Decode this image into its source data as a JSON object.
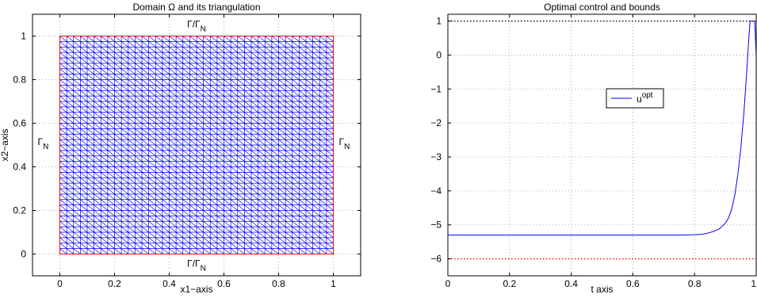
{
  "chart_data": [
    {
      "type": "mesh",
      "title": "Domain Ω and its triangulation",
      "xlabel": "x1−axis",
      "ylabel": "x2−axis",
      "xlim": [
        -0.1,
        1.1
      ],
      "ylim": [
        -0.1,
        1.1
      ],
      "xticks": [
        "0",
        "0.2",
        "0.4",
        "0.6",
        "0.8",
        "1"
      ],
      "yticks": [
        "0",
        "0.2",
        "0.4",
        "0.6",
        "0.8",
        "1"
      ],
      "xtick_values": [
        0,
        0.2,
        0.4,
        0.6,
        0.8,
        1
      ],
      "ytick_values": [
        0,
        0.2,
        0.4,
        0.6,
        0.8,
        1
      ],
      "grid": true,
      "domain": {
        "x": [
          0,
          1
        ],
        "y": [
          0,
          1
        ]
      },
      "mesh_divisions": 40,
      "mesh_color": "#0000ff",
      "boundary_color": "#ff0000",
      "boundary_labels": {
        "top": {
          "base": "Γ/Γ",
          "sub": "N"
        },
        "bottom": {
          "base": "Γ/Γ",
          "sub": "N"
        },
        "left": {
          "base": "Γ",
          "sub": "N"
        },
        "right": {
          "base": "Γ",
          "sub": "N"
        }
      }
    },
    {
      "type": "line",
      "title": "Optimal control and bounds",
      "xlabel": "t axis",
      "ylabel": "",
      "xlim": [
        0,
        1
      ],
      "ylim": [
        -6.5,
        1.2
      ],
      "xticks": [
        "0",
        "0.2",
        "0.4",
        "0.6",
        "0.8",
        "1"
      ],
      "yticks": [
        "1",
        "0",
        "−1",
        "−2",
        "−3",
        "−4",
        "−5",
        "−6"
      ],
      "xtick_values": [
        0,
        0.2,
        0.4,
        0.6,
        0.8,
        1
      ],
      "ytick_values": [
        1,
        0,
        -1,
        -2,
        -3,
        -4,
        -5,
        -6
      ],
      "grid": true,
      "legend": {
        "placement": "center",
        "entries": [
          {
            "base": "u",
            "sup": "opt",
            "color": "#0000ff"
          }
        ]
      },
      "bounds": [
        {
          "value": 1,
          "color": "#000000",
          "style": "dotted"
        },
        {
          "value": -6,
          "color": "#ff0000",
          "style": "dotted"
        }
      ],
      "series": [
        {
          "color": "#0000ff",
          "x": [
            0,
            0.1,
            0.2,
            0.3,
            0.4,
            0.5,
            0.6,
            0.7,
            0.75,
            0.8,
            0.82,
            0.84,
            0.86,
            0.88,
            0.9,
            0.91,
            0.92,
            0.93,
            0.94,
            0.95,
            0.96,
            0.97,
            0.975,
            0.98,
            0.985,
            0.99,
            0.995,
            1.0
          ],
          "y": [
            -5.3,
            -5.3,
            -5.3,
            -5.3,
            -5.3,
            -5.3,
            -5.3,
            -5.3,
            -5.3,
            -5.29,
            -5.28,
            -5.25,
            -5.2,
            -5.12,
            -4.95,
            -4.8,
            -4.55,
            -4.15,
            -3.55,
            -2.75,
            -1.7,
            -0.4,
            0.35,
            1.0,
            1.0,
            1.0,
            1.0,
            0.0
          ]
        }
      ]
    }
  ]
}
